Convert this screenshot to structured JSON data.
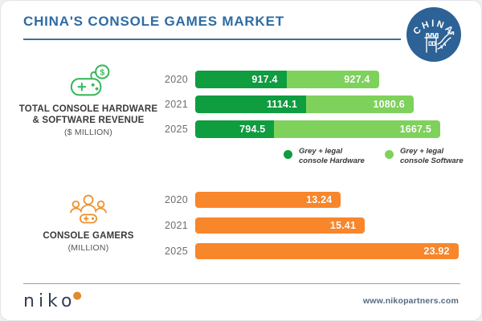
{
  "header": {
    "title": "CHINA'S CONSOLE GAMES MARKET",
    "badge_text": "CHINA"
  },
  "revenue_section": {
    "title_line1": "TOTAL CONSOLE HARDWARE",
    "title_line2": "& SOFTWARE REVENUE",
    "unit": "($ MILLION)",
    "icon": "game-controller-with-dollar-coin",
    "legend": [
      {
        "line1": "Grey + legal",
        "line2": "console Hardware",
        "color": "#0f9d3f"
      },
      {
        "line1": "Grey + legal",
        "line2": "console Software",
        "color": "#7ed25b"
      }
    ]
  },
  "gamers_section": {
    "title": "CONSOLE GAMERS",
    "unit": "(MILLION)",
    "icon": "group-of-gamers-with-controller"
  },
  "footer": {
    "logo_text": "niko",
    "url": "www.nikopartners.com"
  },
  "colors": {
    "title_blue": "#2e6ba4",
    "badge_blue": "#2c6296",
    "hardware_green": "#0f9d3f",
    "software_green": "#7ed25b",
    "gamers_orange": "#f8862b",
    "icon_green": "#3cb95e",
    "icon_orange": "#f0922f",
    "logo_navy": "#333f55",
    "logo_dot_orange": "#e08a2e"
  },
  "chart_data": [
    {
      "type": "bar",
      "stacked": true,
      "orientation": "horizontal",
      "title": "TOTAL CONSOLE HARDWARE & SOFTWARE REVENUE ($ MILLION)",
      "categories": [
        "2020",
        "2021",
        "2025"
      ],
      "series": [
        {
          "name": "Grey + legal console Hardware",
          "color": "#0f9d3f",
          "values": [
            917.4,
            1114.1,
            794.5
          ]
        },
        {
          "name": "Grey + legal console Software",
          "color": "#7ed25b",
          "values": [
            927.4,
            1080.6,
            1667.5
          ]
        }
      ],
      "value_labels": "inside-end",
      "legend_position": "below-right",
      "grid": false
    },
    {
      "type": "bar",
      "orientation": "horizontal",
      "title": "CONSOLE GAMERS (MILLION)",
      "categories": [
        "2020",
        "2021",
        "2025"
      ],
      "values": [
        13.24,
        15.41,
        23.92
      ],
      "color": "#f8862b",
      "value_labels": "inside-end",
      "grid": false
    }
  ]
}
